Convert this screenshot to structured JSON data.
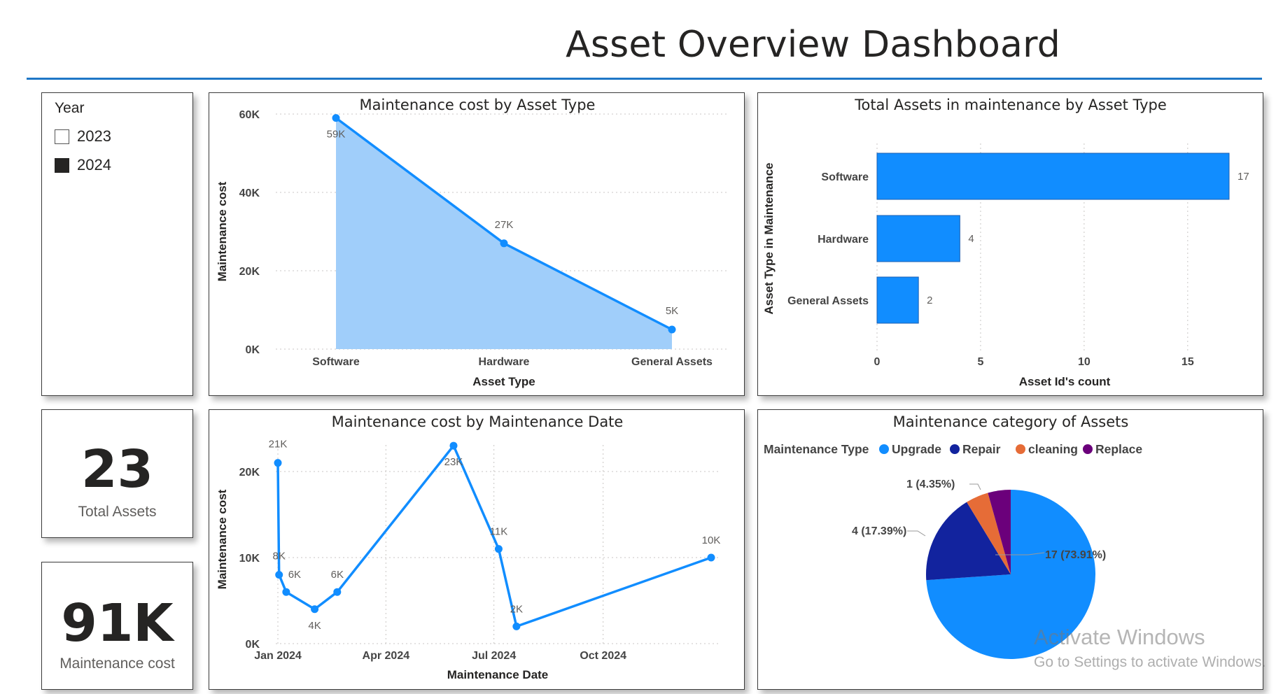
{
  "title": "Asset Overview Dashboard",
  "slicer": {
    "title": "Year",
    "items": [
      {
        "label": "2023",
        "checked": false
      },
      {
        "label": "2024",
        "checked": true
      }
    ]
  },
  "kpis": {
    "total_assets": {
      "value": "23",
      "label": "Total Assets"
    },
    "maintenance_cost": {
      "value": "91K",
      "label": "Maintenance cost"
    }
  },
  "watermark": {
    "line1": "Activate Windows",
    "line2": "Go to Settings to activate Windows."
  },
  "colors": {
    "primary": "#118dff",
    "area_fill": "#a0cefa",
    "navy": "#12239e",
    "orange": "#e66c37",
    "purple": "#6b007b",
    "rule": "#1f77c7"
  },
  "chart_data": [
    {
      "id": "cost_by_type",
      "type": "area",
      "title": "Maintenance cost by Asset Type",
      "xlabel": "Asset Type",
      "ylabel": "Maintenance cost",
      "categories": [
        "Software",
        "Hardware",
        "General Assets"
      ],
      "values": [
        59000,
        27000,
        5000
      ],
      "data_labels": [
        "59K",
        "27K",
        "5K"
      ],
      "ylim": [
        0,
        60000
      ],
      "yticks": [
        "0K",
        "20K",
        "40K",
        "60K"
      ],
      "grid": true
    },
    {
      "id": "assets_by_type",
      "type": "bar",
      "orientation": "horizontal",
      "title": "Total Assets in maintenance by Asset Type",
      "xlabel": "Asset Id's count",
      "ylabel": "Asset Type in Maintenance",
      "categories": [
        "Software",
        "Hardware",
        "General Assets"
      ],
      "values": [
        17,
        4,
        2
      ],
      "xlim": [
        0,
        17
      ],
      "xticks": [
        "0",
        "5",
        "10",
        "15"
      ],
      "grid": true
    },
    {
      "id": "cost_by_date",
      "type": "line",
      "title": "Maintenance cost by Maintenance Date",
      "xlabel": "Maintenance Date",
      "ylabel": "Maintenance cost",
      "x": [
        "2024-01-01",
        "2024-01-02",
        "2024-01-08",
        "2024-02-01",
        "2024-02-20",
        "2024-05-28",
        "2024-07-05",
        "2024-07-20",
        "2024-12-31"
      ],
      "values": [
        21000,
        8000,
        6000,
        4000,
        6000,
        23000,
        11000,
        2000,
        10000
      ],
      "data_labels": [
        "21K",
        "8K",
        "6K",
        "4K",
        "6K",
        "23K",
        "11K",
        "2K",
        "10K"
      ],
      "xticks": [
        "Jan 2024",
        "Apr 2024",
        "Jul 2024",
        "Oct 2024"
      ],
      "ylim": [
        0,
        23000
      ],
      "yticks": [
        "0K",
        "10K",
        "20K"
      ],
      "grid": true
    },
    {
      "id": "maintenance_category",
      "type": "pie",
      "title": "Maintenance category of Assets",
      "legend_title": "Maintenance Type",
      "legend_position": "top-left",
      "categories": [
        "Upgrade",
        "Repair",
        "cleaning",
        "Replace"
      ],
      "values": [
        17,
        4,
        1,
        1
      ],
      "colors": [
        "#118dff",
        "#12239e",
        "#e66c37",
        "#6b007b"
      ],
      "data_labels": [
        "17 (73.91%)",
        "4 (17.39%)",
        "1 (4.35%)",
        ""
      ]
    }
  ]
}
